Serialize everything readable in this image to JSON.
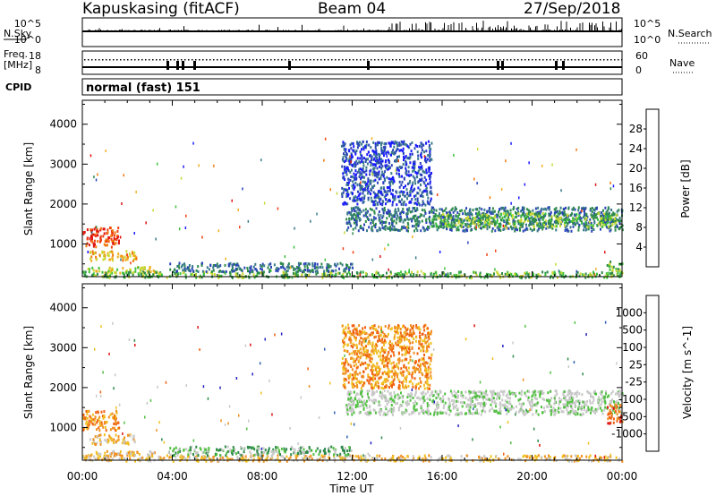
{
  "header": {
    "station": "Kapuskasing (fitACF)",
    "beam": "Beam 04",
    "date": "27/Sep/2018"
  },
  "noise_panel": {
    "left_label": "N.Sky",
    "right_label": "N.Search",
    "left_ticks": [
      "10^5",
      "10^0"
    ],
    "right_ticks": [
      "10^5",
      "10^0"
    ]
  },
  "freq_panel": {
    "left_label_1": "Freq.",
    "left_label_2": "[MHz]",
    "right_label": "Nave",
    "left_ticks": [
      "18",
      "8"
    ],
    "right_ticks": [
      "60",
      "0"
    ]
  },
  "cpid": {
    "label": "CPID",
    "program": "normal (fast) 151"
  },
  "chart_data": [
    {
      "type": "heatmap",
      "name": "power",
      "ylabel": "Slant Range [km]",
      "xlabel": "Time UT",
      "x_ticks": [
        "00:00",
        "04:00",
        "08:00",
        "12:00",
        "16:00",
        "20:00",
        "00:00"
      ],
      "y_ticks": [
        1000,
        2000,
        3000,
        4000
      ],
      "ylim": [
        180,
        4600
      ],
      "xlim_hours": [
        0,
        24
      ],
      "colorbar_label": "Power [dB]",
      "colorbar_ticks": [
        "4",
        "8",
        "12",
        "16",
        "20",
        "24",
        "28"
      ],
      "colorbar_colors": [
        "#1a1aff",
        "#2a44b8",
        "#3a7a8a",
        "#2e8a4a",
        "#3cc03c",
        "#c8d832",
        "#f0b020",
        "#f07a10",
        "#f04010",
        "#e01010"
      ],
      "regions": [
        {
          "t0": 0.0,
          "t1": 1.6,
          "r0": 950,
          "r1": 1450,
          "level": 8
        },
        {
          "t0": 0.3,
          "t1": 2.4,
          "r0": 600,
          "r1": 850,
          "level": 6
        },
        {
          "t0": 0.2,
          "t1": 3.2,
          "r0": 300,
          "r1": 450,
          "level": 5
        },
        {
          "t0": 0.0,
          "t1": 24.0,
          "r0": 180,
          "r1": 330,
          "level": 4
        },
        {
          "t0": 3.8,
          "t1": 12.0,
          "r0": 330,
          "r1": 550,
          "level": 2
        },
        {
          "t0": 11.7,
          "t1": 24.0,
          "r0": 1350,
          "r1": 1950,
          "level": 2
        },
        {
          "t0": 15.5,
          "t1": 23.8,
          "r0": 1450,
          "r1": 1800,
          "level": 4
        },
        {
          "t0": 11.5,
          "t1": 15.5,
          "r0": 2000,
          "r1": 3600,
          "level": 1
        },
        {
          "t0": 23.3,
          "t1": 24.0,
          "r0": 200,
          "r1": 600,
          "level": 4
        }
      ]
    },
    {
      "type": "heatmap",
      "name": "velocity",
      "ylabel": "Slant Range [km]",
      "xlabel": "Time UT",
      "x_ticks": [
        "00:00",
        "04:00",
        "08:00",
        "12:00",
        "16:00",
        "20:00",
        "00:00"
      ],
      "y_ticks": [
        1000,
        2000,
        3000,
        4000
      ],
      "ylim": [
        180,
        4600
      ],
      "xlim_hours": [
        0,
        24
      ],
      "colorbar_label": "Velocity [m s^-1]",
      "colorbar_ticks": [
        "1000",
        "500",
        "100",
        "25",
        "-25",
        "-100",
        "-500",
        "-1000"
      ],
      "colorbar_colors": [
        "#2020c0",
        "#3060b0",
        "#2e8a4a",
        "#50c040",
        "#c8c8c8",
        "#c8c8c8",
        "#f0c020",
        "#f09020",
        "#f06010",
        "#e01010"
      ],
      "regions": [
        {
          "t0": 0.0,
          "t1": 1.6,
          "r0": 950,
          "r1": 1450,
          "level": 7
        },
        {
          "t0": 0.3,
          "t1": 2.4,
          "r0": 600,
          "r1": 850,
          "level": 6
        },
        {
          "t0": 0.2,
          "t1": 3.2,
          "r0": 300,
          "r1": 450,
          "level": 6
        },
        {
          "t0": 0.0,
          "t1": 24.0,
          "r0": 180,
          "r1": 330,
          "level": 6
        },
        {
          "t0": 3.8,
          "t1": 12.0,
          "r0": 330,
          "r1": 550,
          "level": 3
        },
        {
          "t0": 11.7,
          "t1": 24.0,
          "r0": 1350,
          "r1": 1950,
          "level": 4
        },
        {
          "t0": 11.5,
          "t1": 15.5,
          "r0": 2000,
          "r1": 3600,
          "level": 7
        },
        {
          "t0": 23.3,
          "t1": 24.0,
          "r0": 1100,
          "r1": 1600,
          "level": 8
        }
      ]
    }
  ]
}
